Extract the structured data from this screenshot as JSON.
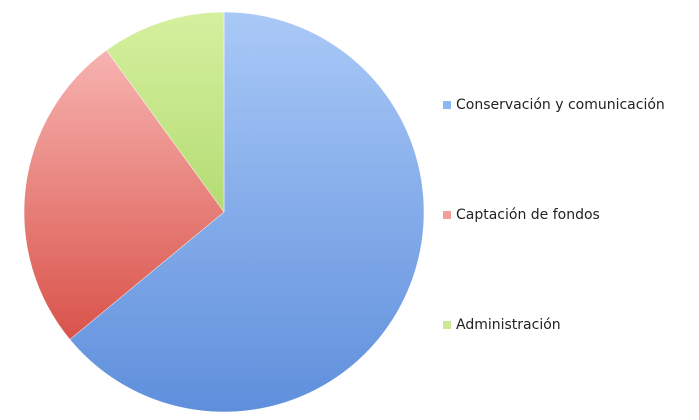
{
  "chart_data": {
    "type": "pie",
    "categories": [
      "Conservación y comunicación",
      "Captación de fondos",
      "Administración"
    ],
    "values": [
      64,
      26,
      10
    ],
    "colors": [
      "#8fb6ee",
      "#f0a09c",
      "#cbe994"
    ],
    "legend": "right"
  }
}
